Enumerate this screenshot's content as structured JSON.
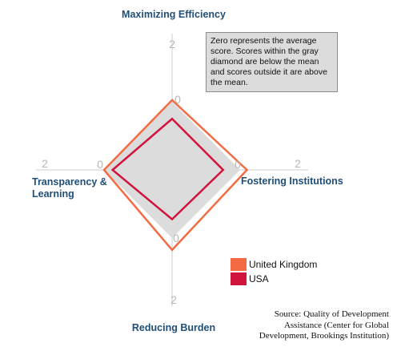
{
  "chart_data": {
    "type": "radar",
    "axes": [
      {
        "name": "Maximizing Efficiency",
        "direction": "top"
      },
      {
        "name": "Fostering Institutions",
        "direction": "right"
      },
      {
        "name": "Reducing Burden",
        "direction": "bottom"
      },
      {
        "name": "Transparency & Learning",
        "direction": "left"
      }
    ],
    "axis_ticks": [
      "0",
      "2"
    ],
    "range": [
      -2,
      2
    ],
    "mean_diamond": [
      0,
      0,
      0,
      0
    ],
    "series": [
      {
        "name": "United Kingdom",
        "color": "#f26b43",
        "values": [
          0.05,
          0.2,
          0.35,
          0.0
        ]
      },
      {
        "name": "USA",
        "color": "#d0143c",
        "values": [
          -0.5,
          -0.5,
          -0.55,
          -0.25
        ]
      }
    ],
    "note": "Zero represents the average score. Scores within the gray diamond are below the mean and scores outside it are above the mean.",
    "source": "Source: Quality of Development Assistance (Center for Global Development, Brookings Institution)",
    "legend_position": "bottom-right",
    "mean_fill": "#dcdcdc"
  }
}
